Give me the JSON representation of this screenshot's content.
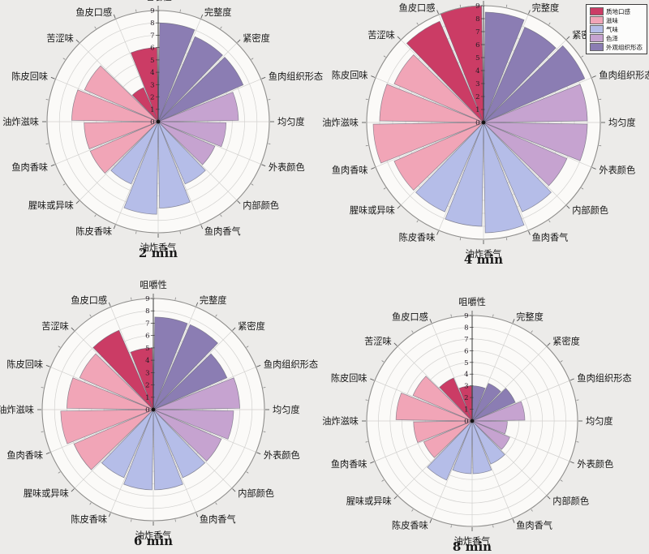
{
  "page": {
    "background": "#ecebe9"
  },
  "legend": {
    "items": [
      {
        "label": "质地口感",
        "color": "#cb3c65"
      },
      {
        "label": "滋味",
        "color": "#f1a5b7"
      },
      {
        "label": "气味",
        "color": "#b5bde8"
      },
      {
        "label": "色泽",
        "color": "#c6a3d0"
      },
      {
        "label": "外观组织形态",
        "color": "#8b7db3"
      }
    ]
  },
  "chart_data": {
    "type": "bar",
    "subtype": "polar-rose",
    "axis": {
      "min": 0,
      "max": 9,
      "ticks": [
        0,
        1,
        2,
        3,
        4,
        5,
        6,
        7,
        8,
        9
      ]
    },
    "grid": "on",
    "legend_position": "top-right",
    "categories": [
      {
        "label": "咀嚼性",
        "group": "质地口感"
      },
      {
        "label": "完整度",
        "group": "外观组织形态"
      },
      {
        "label": "紧密度",
        "group": "外观组织形态"
      },
      {
        "label": "鱼肉组织形态",
        "group": "外观组织形态"
      },
      {
        "label": "均匀度",
        "group": "色泽"
      },
      {
        "label": "外表颜色",
        "group": "色泽"
      },
      {
        "label": "内部颜色",
        "group": "色泽"
      },
      {
        "label": "鱼肉香气",
        "group": "气味"
      },
      {
        "label": "油炸香气",
        "group": "气味"
      },
      {
        "label": "陈皮香味",
        "group": "气味"
      },
      {
        "label": "腥味或异味",
        "group": "气味"
      },
      {
        "label": "鱼肉香味",
        "group": "滋味"
      },
      {
        "label": "油炸滋味",
        "group": "滋味"
      },
      {
        "label": "陈皮回味",
        "group": "滋味"
      },
      {
        "label": "苦涩味",
        "group": "滋味"
      },
      {
        "label": "鱼皮口感",
        "group": "质地口感"
      }
    ],
    "charts": [
      {
        "title": "2 min",
        "values": [
          6,
          8,
          7.5,
          7.5,
          6.5,
          5.5,
          5,
          5.5,
          7,
          7.5,
          5.5,
          6,
          6,
          7,
          6.5,
          3
        ]
      },
      {
        "title": "4 min",
        "values": [
          9,
          8.5,
          8,
          8.5,
          8,
          8,
          7,
          7.5,
          8.5,
          8,
          7.5,
          7.5,
          8.5,
          8,
          7.5,
          8.5
        ]
      },
      {
        "title": "6 min",
        "values": [
          5,
          7.5,
          7.5,
          6.5,
          7,
          6.5,
          6,
          6,
          6.5,
          6.5,
          6,
          7,
          7.5,
          7,
          6.5,
          7
        ]
      },
      {
        "title": "8 min",
        "values": [
          3,
          3,
          3.5,
          4,
          4.5,
          3,
          3.5,
          4,
          4.5,
          4.5,
          5.5,
          4.5,
          5,
          6.5,
          5.5,
          4
        ]
      }
    ]
  }
}
